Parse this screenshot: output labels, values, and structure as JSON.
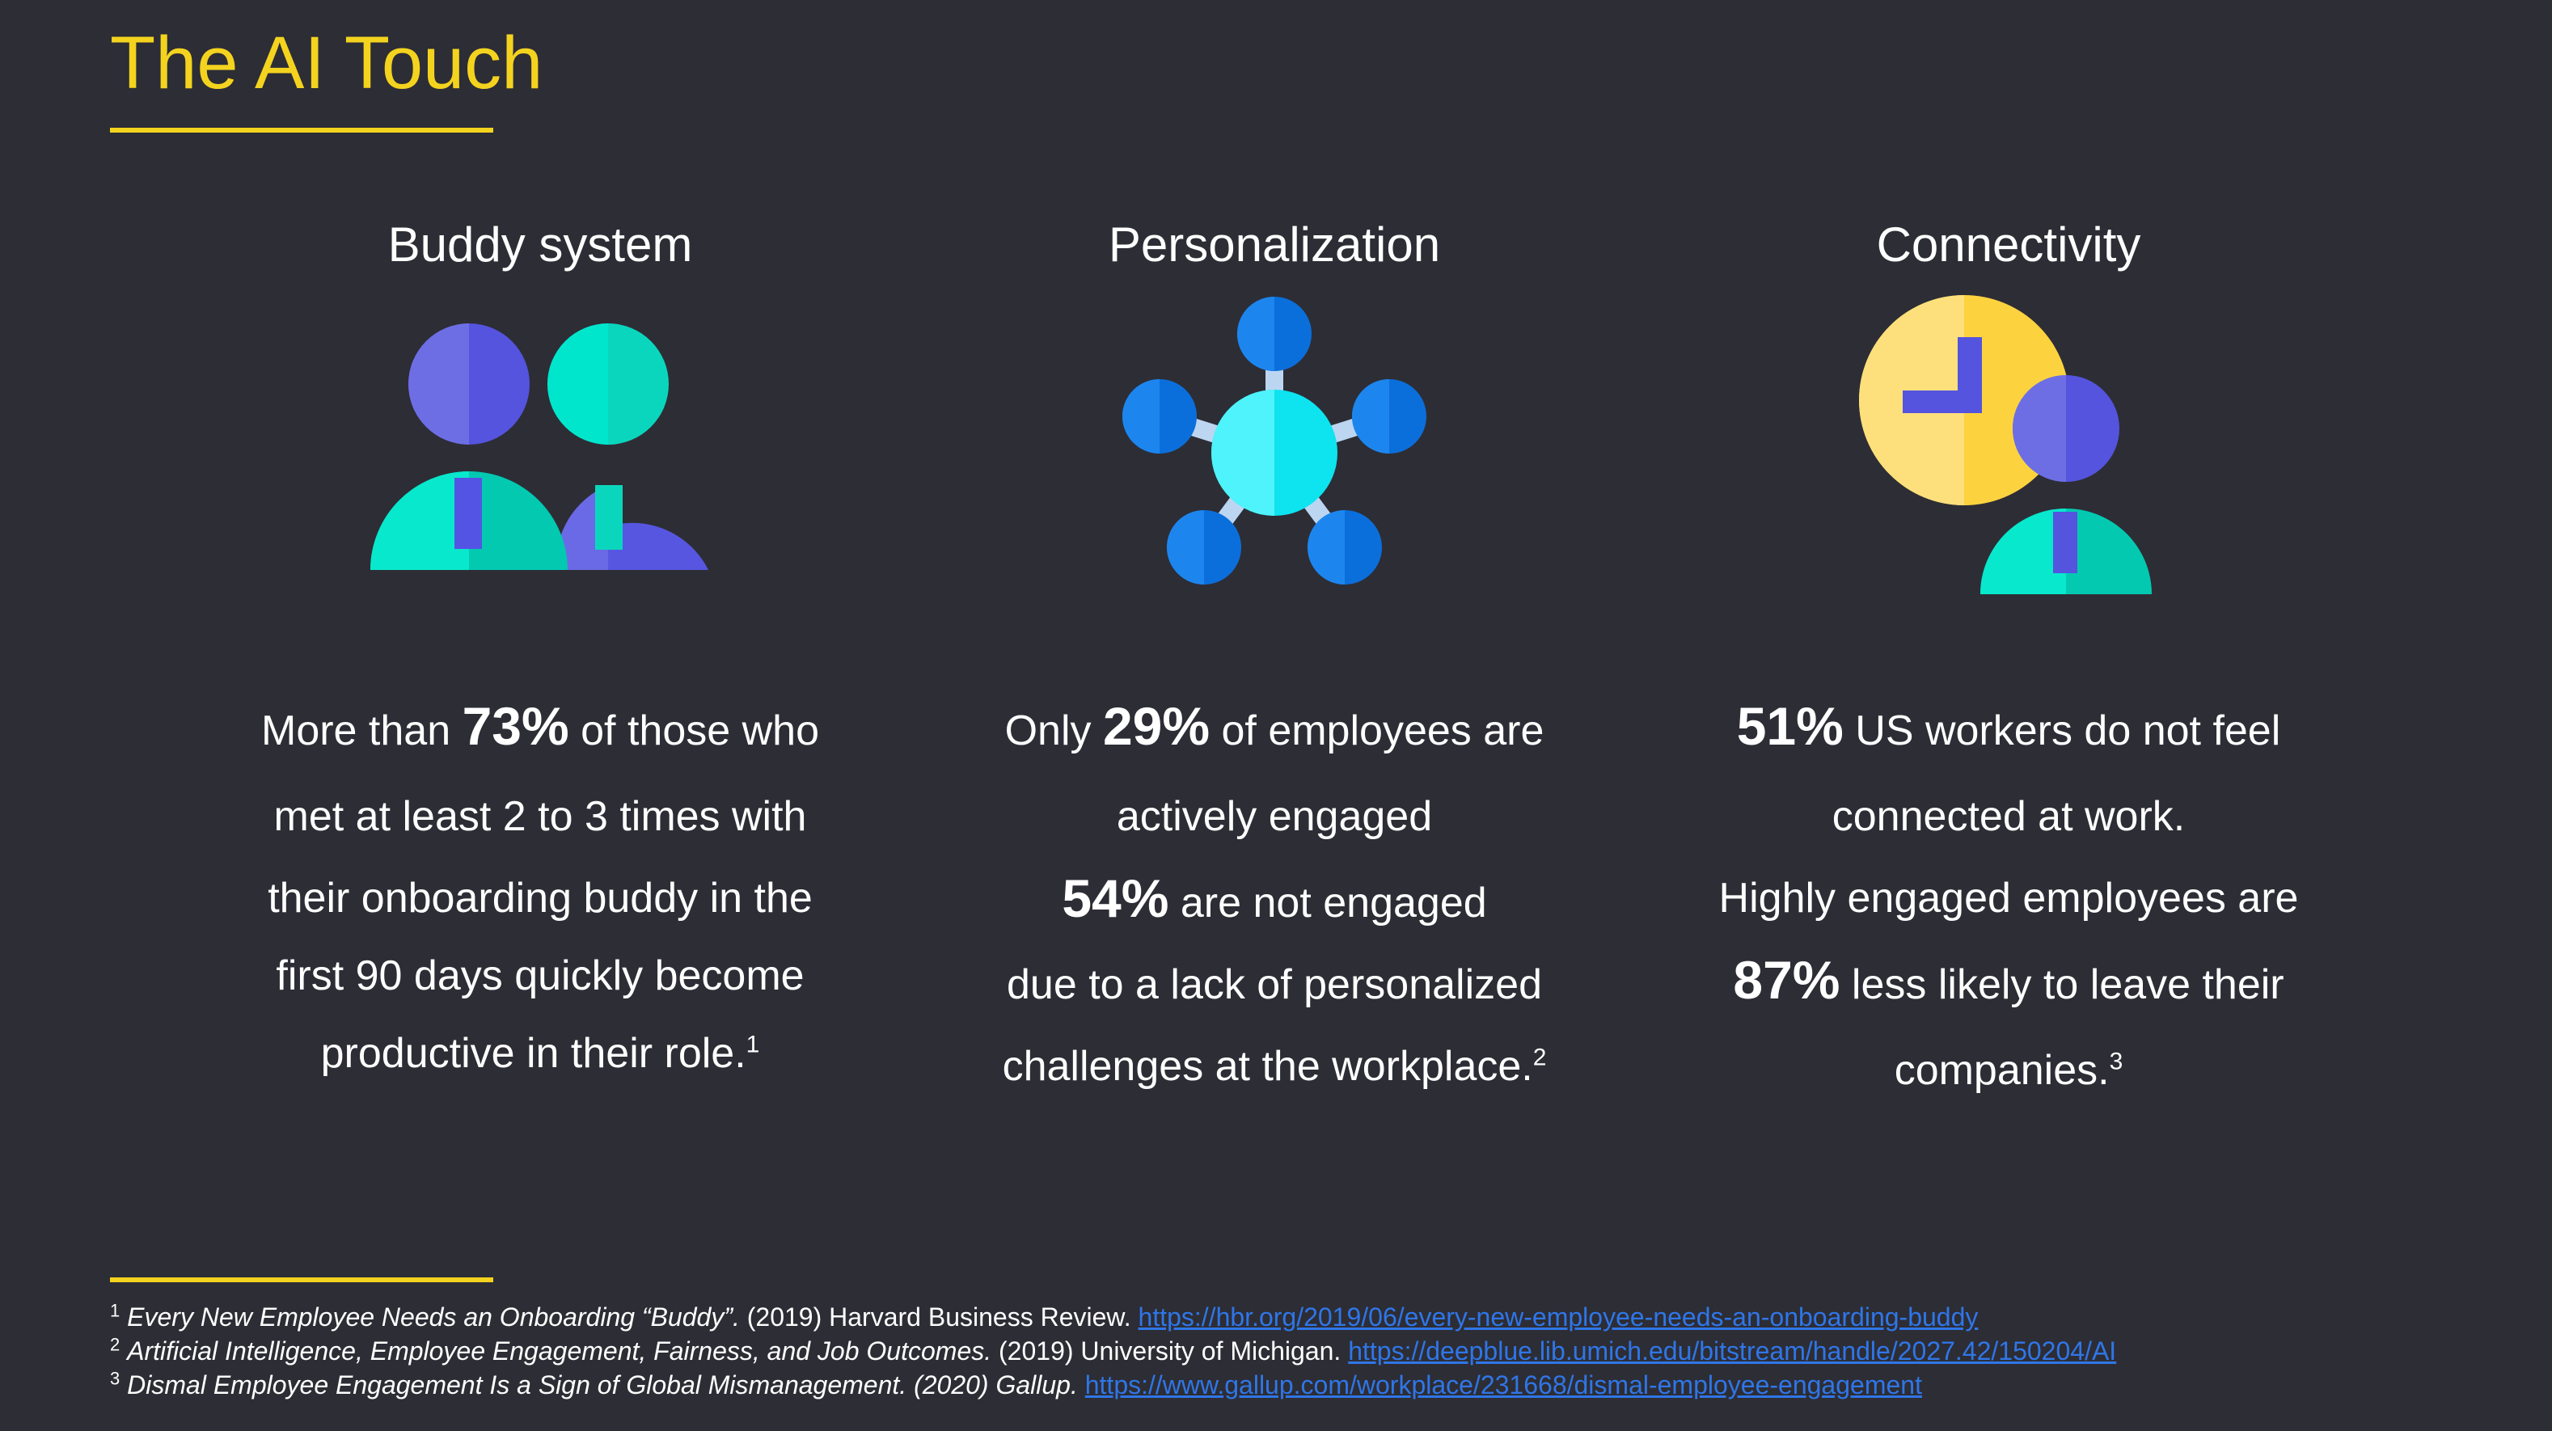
{
  "slide": {
    "title": "The AI Touch"
  },
  "columns": [
    {
      "heading": "Buddy system",
      "icon": "buddy-people-icon",
      "lines": [
        {
          "pre": "More than ",
          "big": "73%",
          "post": " of those who"
        },
        {
          "text": "met at least 2 to 3 times with"
        },
        {
          "text": "their onboarding buddy in the"
        },
        {
          "text": "first 90 days quickly become"
        },
        {
          "text": "productive in their role.",
          "sup": "1"
        }
      ]
    },
    {
      "heading": "Personalization",
      "icon": "network-nodes-icon",
      "lines": [
        {
          "pre": "Only ",
          "big": "29%",
          "post": " of employees are"
        },
        {
          "text": "actively engaged"
        },
        {
          "big": "54%",
          "post": " are not engaged"
        },
        {
          "text": "due to a lack of personalized"
        },
        {
          "text": "challenges at the workplace.",
          "sup": "2"
        }
      ]
    },
    {
      "heading": "Connectivity",
      "icon": "clock-person-icon",
      "lines": [
        {
          "big": "51%",
          "post": " US workers do not feel"
        },
        {
          "text": "connected at work."
        },
        {
          "text": "Highly engaged employees are"
        },
        {
          "big": "87%",
          "post": " less likely to leave their"
        },
        {
          "text": "companies.",
          "sup": "3"
        }
      ]
    }
  ],
  "footnotes": [
    {
      "num": "1",
      "title": "Every New Employee Needs an Onboarding “Buddy”.",
      "source": " (2019) Harvard Business Review. ",
      "url": "https://hbr.org/2019/06/every-new-employee-needs-an-onboarding-buddy"
    },
    {
      "num": "2",
      "title": "Artificial Intelligence, Employee Engagement, Fairness, and Job Outcomes.",
      "source": " (2019) University of Michigan. ",
      "url": "https://deepblue.lib.umich.edu/bitstream/handle/2027.42/150204/AI"
    },
    {
      "num": "3",
      "title": "Dismal Employee Engagement Is a Sign of Global Mismanagement. (2020) Gallup.",
      "source": " ",
      "url": "https://www.gallup.com/workplace/231668/dismal-employee-engagement"
    }
  ],
  "colors": {
    "background": "#2d2d35",
    "accent": "#f4d31f",
    "link": "#2f76e8"
  }
}
